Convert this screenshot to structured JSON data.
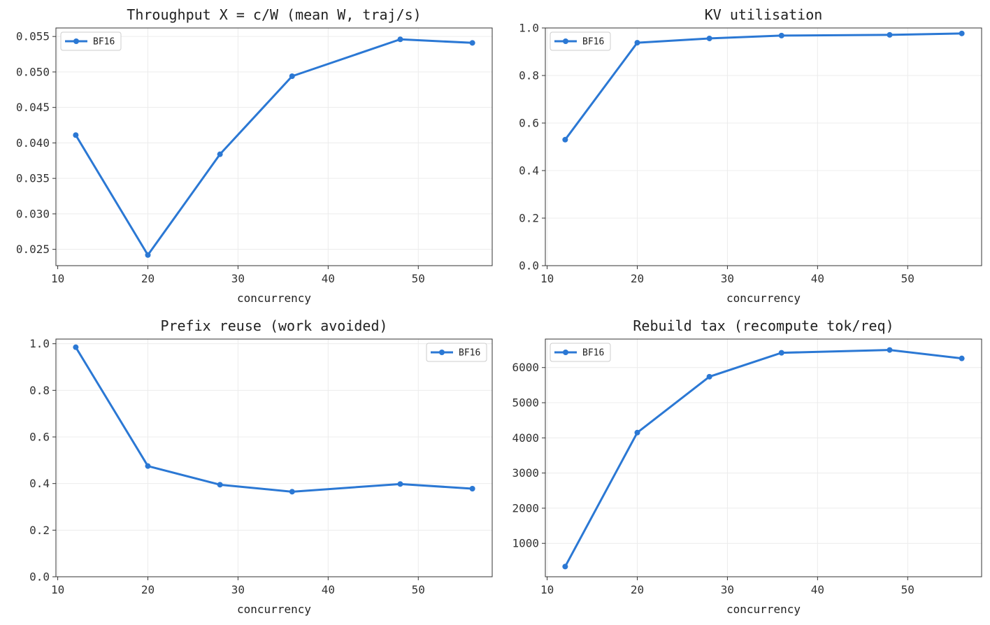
{
  "chart_data": [
    {
      "type": "line",
      "title": "Throughput X = c/W (mean W, traj/s)",
      "xlabel": "concurrency",
      "ylabel": "",
      "x": [
        12,
        20,
        28,
        36,
        48,
        56
      ],
      "series": [
        {
          "name": "BF16",
          "values": [
            0.0411,
            0.0242,
            0.0384,
            0.0494,
            0.0546,
            0.0541
          ]
        }
      ],
      "xlim": [
        9.8,
        58.2
      ],
      "ylim": [
        0.0227,
        0.0562
      ],
      "xticks": [
        10,
        20,
        30,
        40,
        50
      ],
      "yticks": [
        0.025,
        0.03,
        0.035,
        0.04,
        0.045,
        0.05,
        0.055
      ],
      "ytick_labels": [
        "0.025",
        "0.030",
        "0.035",
        "0.040",
        "0.045",
        "0.050",
        "0.055"
      ],
      "legend_position": "top-left",
      "grid": true,
      "color": "#2b78d4"
    },
    {
      "type": "line",
      "title": "KV utilisation",
      "xlabel": "concurrency",
      "ylabel": "",
      "x": [
        12,
        20,
        28,
        36,
        48,
        56
      ],
      "series": [
        {
          "name": "BF16",
          "values": [
            0.53,
            0.938,
            0.956,
            0.968,
            0.971,
            0.977
          ]
        }
      ],
      "xlim": [
        9.8,
        58.2
      ],
      "ylim": [
        0.0,
        1.0
      ],
      "xticks": [
        10,
        20,
        30,
        40,
        50
      ],
      "yticks": [
        0.0,
        0.2,
        0.4,
        0.6,
        0.8,
        1.0
      ],
      "ytick_labels": [
        "0.0",
        "0.2",
        "0.4",
        "0.6",
        "0.8",
        "1.0"
      ],
      "legend_position": "top-left",
      "grid": true,
      "color": "#2b78d4"
    },
    {
      "type": "line",
      "title": "Prefix reuse (work avoided)",
      "xlabel": "concurrency",
      "ylabel": "",
      "x": [
        12,
        20,
        28,
        36,
        48,
        56
      ],
      "series": [
        {
          "name": "BF16",
          "values": [
            0.985,
            0.475,
            0.395,
            0.365,
            0.398,
            0.378
          ]
        }
      ],
      "xlim": [
        9.8,
        58.2
      ],
      "ylim": [
        0.0,
        1.02
      ],
      "xticks": [
        10,
        20,
        30,
        40,
        50
      ],
      "yticks": [
        0.0,
        0.2,
        0.4,
        0.6,
        0.8,
        1.0
      ],
      "ytick_labels": [
        "0.0",
        "0.2",
        "0.4",
        "0.6",
        "0.8",
        "1.0"
      ],
      "legend_position": "top-right",
      "grid": true,
      "color": "#2b78d4"
    },
    {
      "type": "line",
      "title": "Rebuild tax (recompute tok/req)",
      "xlabel": "concurrency",
      "ylabel": "",
      "x": [
        12,
        20,
        28,
        36,
        48,
        56
      ],
      "series": [
        {
          "name": "BF16",
          "values": [
            340,
            4150,
            5740,
            6420,
            6500,
            6260
          ]
        }
      ],
      "xlim": [
        9.8,
        58.2
      ],
      "ylim": [
        50,
        6810
      ],
      "xticks": [
        10,
        20,
        30,
        40,
        50
      ],
      "yticks": [
        1000,
        2000,
        3000,
        4000,
        5000,
        6000
      ],
      "ytick_labels": [
        "1000",
        "2000",
        "3000",
        "4000",
        "5000",
        "6000"
      ],
      "legend_position": "top-left",
      "grid": true,
      "color": "#2b78d4"
    }
  ]
}
